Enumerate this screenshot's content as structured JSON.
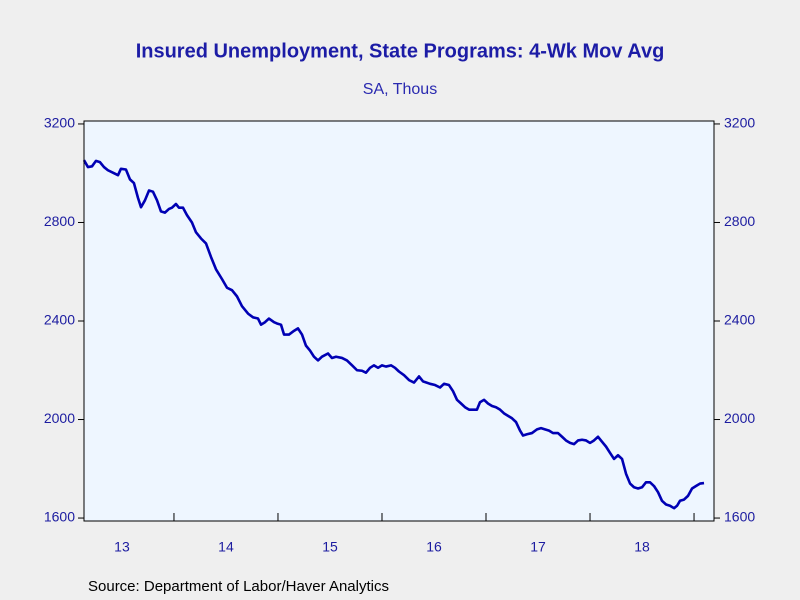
{
  "chart_data": {
    "type": "line",
    "title": "Insured Unemployment, State Programs: 4-Wk Mov Avg",
    "subtitle": "SA, Thous",
    "source": "Source:  Department of Labor/Haver Analytics",
    "x": [
      2013.135,
      2013.173,
      2013.212,
      2013.25,
      2013.288,
      2013.327,
      2013.365,
      2013.423,
      2013.462,
      2013.49,
      2013.538,
      2013.577,
      2013.615,
      2013.654,
      2013.683,
      2013.721,
      2013.76,
      2013.798,
      2013.837,
      2013.875,
      2013.913,
      2013.952,
      2013.981,
      2014.019,
      2014.048,
      2014.087,
      2014.125,
      2014.173,
      2014.212,
      2014.26,
      2014.308,
      2014.356,
      2014.404,
      2014.462,
      2014.51,
      2014.558,
      2014.606,
      2014.654,
      2014.712,
      2014.76,
      2014.808,
      2014.837,
      2014.875,
      2014.913,
      2014.962,
      2014.99,
      2015.029,
      2015.058,
      2015.106,
      2015.154,
      2015.192,
      2015.231,
      2015.269,
      2015.308,
      2015.346,
      2015.385,
      2015.423,
      2015.481,
      2015.519,
      2015.558,
      2015.615,
      2015.663,
      2015.712,
      2015.76,
      2015.808,
      2015.846,
      2015.885,
      2015.923,
      2015.962,
      2016.0,
      2016.038,
      2016.087,
      2016.125,
      2016.163,
      2016.212,
      2016.26,
      2016.308,
      2016.356,
      2016.394,
      2016.462,
      2016.51,
      2016.558,
      2016.596,
      2016.644,
      2016.683,
      2016.721,
      2016.76,
      2016.798,
      2016.837,
      2016.875,
      2016.913,
      2016.942,
      2016.981,
      2017.019,
      2017.058,
      2017.096,
      2017.135,
      2017.173,
      2017.212,
      2017.25,
      2017.288,
      2017.327,
      2017.356,
      2017.394,
      2017.442,
      2017.49,
      2017.529,
      2017.567,
      2017.606,
      2017.644,
      2017.692,
      2017.731,
      2017.769,
      2017.808,
      2017.846,
      2017.885,
      2017.923,
      2017.962,
      2018.0,
      2018.038,
      2018.077,
      2018.115,
      2018.154,
      2018.192,
      2018.231,
      2018.269,
      2018.308,
      2018.346,
      2018.385,
      2018.423,
      2018.462,
      2018.5,
      2018.538,
      2018.577,
      2018.615,
      2018.654,
      2018.692,
      2018.731,
      2018.769,
      2018.808,
      2018.837,
      2018.865,
      2018.904,
      2018.942,
      2018.981,
      2019.019,
      2019.058,
      2019.096
    ],
    "series": [
      {
        "color": "#0000b4",
        "values": [
          3053,
          3025,
          3028,
          3050,
          3045,
          3025,
          3012,
          3000,
          2992,
          3018,
          3015,
          2975,
          2960,
          2900,
          2862,
          2890,
          2930,
          2925,
          2890,
          2845,
          2840,
          2855,
          2860,
          2875,
          2860,
          2860,
          2830,
          2800,
          2760,
          2735,
          2715,
          2660,
          2610,
          2570,
          2535,
          2525,
          2500,
          2460,
          2430,
          2415,
          2410,
          2385,
          2395,
          2410,
          2395,
          2390,
          2385,
          2345,
          2345,
          2360,
          2370,
          2345,
          2300,
          2280,
          2255,
          2240,
          2255,
          2268,
          2250,
          2255,
          2250,
          2240,
          2220,
          2200,
          2198,
          2190,
          2210,
          2220,
          2210,
          2220,
          2215,
          2220,
          2210,
          2195,
          2180,
          2160,
          2150,
          2175,
          2155,
          2145,
          2140,
          2130,
          2145,
          2140,
          2115,
          2080,
          2065,
          2050,
          2040,
          2040,
          2040,
          2070,
          2080,
          2065,
          2055,
          2050,
          2040,
          2025,
          2015,
          2005,
          1990,
          1955,
          1935,
          1940,
          1945,
          1960,
          1965,
          1960,
          1955,
          1945,
          1945,
          1930,
          1915,
          1905,
          1900,
          1915,
          1918,
          1915,
          1905,
          1915,
          1930,
          1910,
          1890,
          1865,
          1840,
          1855,
          1840,
          1780,
          1740,
          1725,
          1720,
          1725,
          1745,
          1745,
          1730,
          1705,
          1670,
          1655,
          1650,
          1640,
          1650,
          1670,
          1675,
          1690,
          1720,
          1730,
          1740,
          1742
        ]
      }
    ],
    "xlim": [
      2013.135,
      2019.192
    ],
    "xticks": [
      {
        "value": 2013.5,
        "label": "13"
      },
      {
        "value": 2014.5,
        "label": "14"
      },
      {
        "value": 2015.5,
        "label": "15"
      },
      {
        "value": 2016.5,
        "label": "16"
      },
      {
        "value": 2017.5,
        "label": "17"
      },
      {
        "value": 2018.5,
        "label": "18"
      }
    ],
    "xminorticks": [
      2014,
      2015,
      2016,
      2017,
      2018,
      2019
    ],
    "ylim": [
      1588,
      3212
    ],
    "yticks": [
      1600,
      2000,
      2400,
      2800,
      3200
    ],
    "y2lim": [
      1588,
      3212
    ],
    "y2ticks": [
      1600,
      2000,
      2400,
      2800,
      3200
    ],
    "plot_background": "#eef6ff"
  }
}
